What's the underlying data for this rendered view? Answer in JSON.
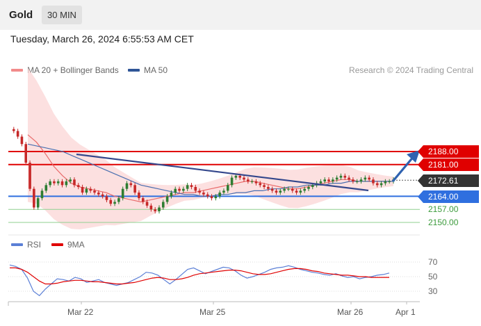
{
  "header": {
    "title": "Gold",
    "timeframe": "30 MIN"
  },
  "datetime": "Tuesday, March 26, 2024 6:55:53 AM CET",
  "legend": {
    "items": [
      {
        "label": "MA 20 + Bollinger Bands",
        "color": "#f28b8b"
      },
      {
        "label": "MA 50",
        "color": "#2f5597"
      }
    ],
    "source": "Research © 2024 Trading Central"
  },
  "levels": {
    "resistance_2": {
      "value": "2188.00",
      "color": "#e00000"
    },
    "resistance_1": {
      "value": "2181.00",
      "color": "#e00000"
    },
    "current": {
      "value": "2172.61",
      "color": "#333333"
    },
    "support_1": {
      "value": "2164.00",
      "color": "#2f6fdf"
    },
    "support_2": {
      "value": "2157.00",
      "color": "#3a9a3a"
    },
    "support_3": {
      "value": "2150.00",
      "color": "#3a9a3a"
    }
  },
  "rsi_panel": {
    "legend": [
      {
        "label": "RSI",
        "color": "#5b7fd6"
      },
      {
        "label": "9MA",
        "color": "#e00000"
      }
    ],
    "ticks": [
      "70",
      "50",
      "30"
    ]
  },
  "x_axis": {
    "ticks": [
      "Mar 22",
      "Mar 25",
      "Mar 26",
      "Apr 1"
    ]
  },
  "chart_data": [
    {
      "type": "candlestick",
      "title": "Gold",
      "timeframe": "30 MIN",
      "levels": [
        2188.0,
        2181.0,
        2164.0,
        2157.0,
        2150.0
      ],
      "last_price": 2172.61,
      "close_series": [
        2200,
        2199,
        2196,
        2192,
        2182,
        2168,
        2158,
        2163,
        2167,
        2170,
        2172,
        2171,
        2172,
        2170,
        2172,
        2173,
        2170,
        2169,
        2166,
        2168,
        2167,
        2166,
        2165,
        2164,
        2162,
        2160,
        2161,
        2163,
        2168,
        2171,
        2170,
        2166,
        2163,
        2161,
        2159,
        2157,
        2156,
        2158,
        2161,
        2164,
        2166,
        2168,
        2167,
        2168,
        2170,
        2169,
        2167,
        2166,
        2165,
        2164,
        2163,
        2164,
        2166,
        2167,
        2170,
        2174,
        2175,
        2174,
        2173,
        2172,
        2172,
        2171,
        2170,
        2169,
        2168,
        2167,
        2166,
        2167,
        2168,
        2168,
        2167,
        2166,
        2167,
        2168,
        2169,
        2170,
        2171,
        2172,
        2173,
        2172,
        2173,
        2174,
        2175,
        2174,
        2173,
        2172,
        2172,
        2173,
        2174,
        2173,
        2171,
        2170,
        2171,
        2172,
        2172,
        2173
      ],
      "ma50": [
        2192,
        2191,
        2190,
        2189,
        2188,
        2186,
        2184,
        2182,
        2180,
        2178,
        2176,
        2174,
        2172,
        2170,
        2169,
        2168,
        2167,
        2166,
        2165,
        2165,
        2164,
        2164,
        2165,
        2165,
        2166,
        2166,
        2167,
        2167,
        2168,
        2168,
        2169,
        2169,
        2170,
        2170,
        2170,
        2171,
        2171,
        2172,
        2172,
        2172,
        2172,
        2172,
        2172
      ],
      "ma20": [
        2197,
        2193,
        2187,
        2180,
        2175,
        2171,
        2169,
        2168,
        2167,
        2166,
        2164,
        2163,
        2162,
        2161,
        2162,
        2163,
        2164,
        2165,
        2166,
        2166,
        2167,
        2168,
        2169,
        2170,
        2171,
        2172,
        2172,
        2171,
        2170,
        2169,
        2168,
        2168,
        2169,
        2170,
        2171,
        2172,
        2173,
        2173,
        2172,
        2172,
        2172,
        2172,
        2172
      ]
    },
    {
      "type": "line",
      "title": "RSI",
      "ylim": [
        20,
        80
      ],
      "ticks": [
        70,
        50,
        30
      ],
      "series": [
        {
          "name": "RSI",
          "values": [
            66,
            64,
            60,
            48,
            30,
            24,
            33,
            40,
            47,
            46,
            44,
            49,
            47,
            42,
            44,
            46,
            42,
            40,
            38,
            40,
            42,
            46,
            50,
            56,
            55,
            52,
            46,
            40,
            46,
            53,
            60,
            62,
            58,
            54,
            57,
            60,
            63,
            62,
            58,
            52,
            48,
            50,
            53,
            56,
            60,
            62,
            63,
            65,
            63,
            60,
            58,
            56,
            55,
            53,
            52,
            54,
            51,
            49,
            50,
            47,
            49,
            50,
            52,
            53,
            55
          ]
        },
        {
          "name": "9MA",
          "values": [
            62,
            62,
            60,
            56,
            50,
            44,
            40,
            40,
            41,
            43,
            44,
            45,
            45,
            44,
            43,
            43,
            42,
            41,
            40,
            40,
            41,
            42,
            44,
            46,
            48,
            49,
            48,
            46,
            46,
            47,
            49,
            52,
            54,
            55,
            56,
            57,
            58,
            59,
            59,
            58,
            56,
            54,
            53,
            53,
            54,
            56,
            58,
            60,
            61,
            61,
            60,
            58,
            57,
            55,
            54,
            53,
            52,
            52,
            51,
            50,
            50,
            49,
            49,
            49,
            49
          ]
        }
      ]
    }
  ]
}
